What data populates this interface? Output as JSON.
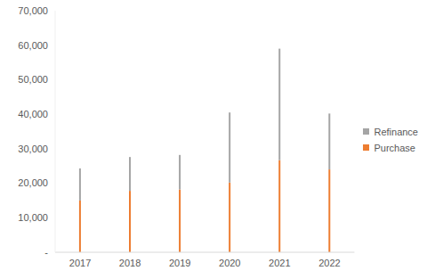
{
  "chart_data": {
    "type": "bar",
    "stacked": true,
    "categories": [
      "2017",
      "2018",
      "2019",
      "2020",
      "2021",
      "2022"
    ],
    "series": [
      {
        "name": "Purchase",
        "color": "#ED7D31",
        "values": [
          15000,
          17800,
          18200,
          20200,
          26700,
          24000
        ]
      },
      {
        "name": "Refinance",
        "color": "#A5A5A5",
        "values": [
          9300,
          9800,
          10000,
          20300,
          32300,
          16200
        ]
      }
    ],
    "ylim": [
      0,
      70000
    ],
    "yticks": [
      {
        "value": 0,
        "label": "-"
      },
      {
        "value": 10000,
        "label": "10,000"
      },
      {
        "value": 20000,
        "label": "20,000"
      },
      {
        "value": 30000,
        "label": "30,000"
      },
      {
        "value": 40000,
        "label": "40,000"
      },
      {
        "value": 50000,
        "label": "50,000"
      },
      {
        "value": 60000,
        "label": "60,000"
      },
      {
        "value": 70000,
        "label": "70,000"
      }
    ],
    "grid": false,
    "legend": "right"
  }
}
